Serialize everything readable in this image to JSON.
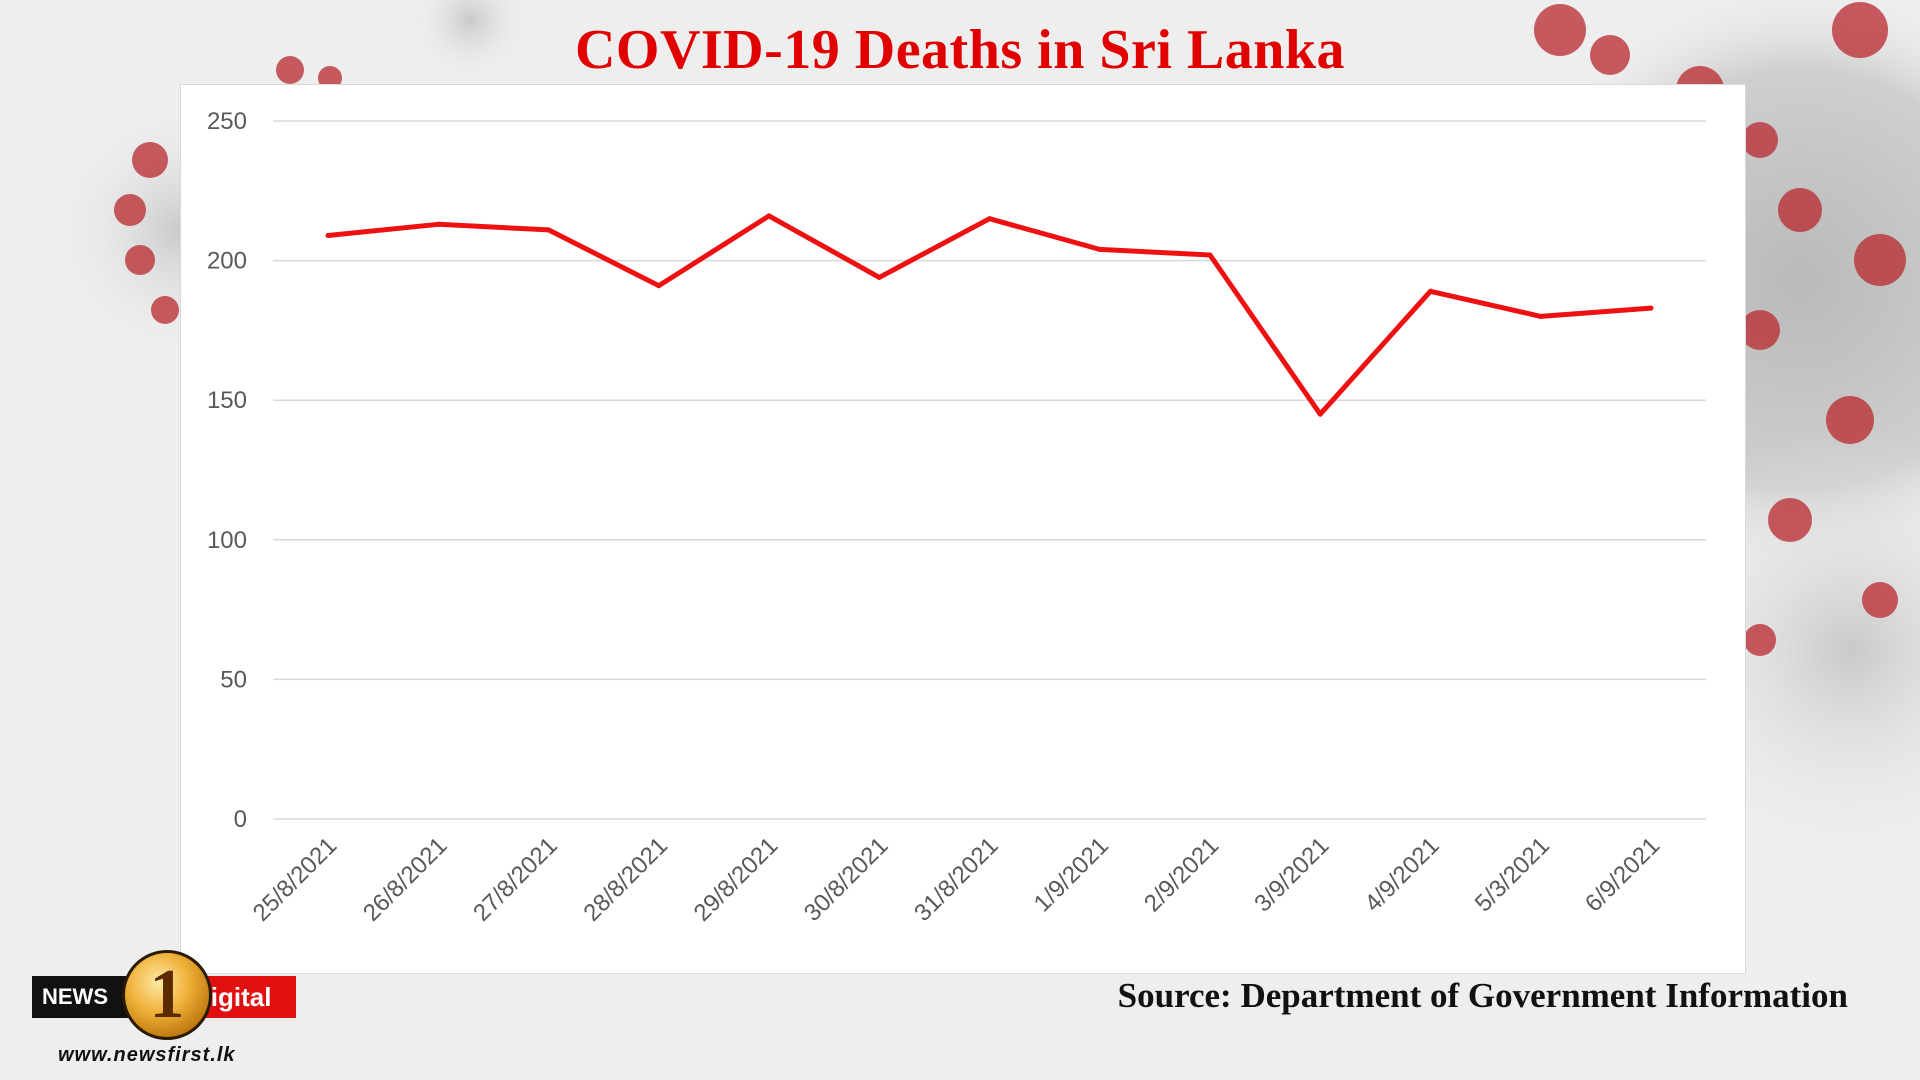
{
  "chart_data": {
    "type": "line",
    "title": "COVID-19 Deaths in Sri Lanka",
    "categories": [
      "25/8/2021",
      "26/8/2021",
      "27/8/2021",
      "28/8/2021",
      "29/8/2021",
      "30/8/2021",
      "31/8/2021",
      "1/9/2021",
      "2/9/2021",
      "3/9/2021",
      "4/9/2021",
      "5/3/2021",
      "6/9/2021"
    ],
    "series": [
      {
        "values": [
          209,
          213,
          211,
          191,
          216,
          194,
          215,
          204,
          202,
          145,
          189,
          180,
          183
        ]
      }
    ],
    "ylim": [
      0,
      250
    ],
    "yticks": [
      0,
      50,
      100,
      150,
      200,
      250
    ],
    "grid": true,
    "legend": "none",
    "line_color": "#ee1111"
  },
  "source_text": "Source: Department of Government Information",
  "branding": {
    "news_label": "NEWS",
    "digital_label": "Digital",
    "circle_label": "1",
    "url": "www.newsfirst.lk"
  },
  "colors": {
    "title": "#e10000",
    "line": "#ee1111",
    "grid": "#d9d9d9",
    "tick_text": "#595959"
  }
}
